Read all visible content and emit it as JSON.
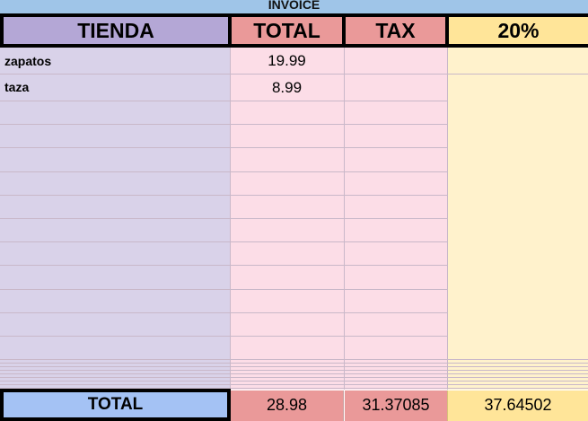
{
  "title": "INVOICE",
  "headers": [
    "TIENDA",
    "TOTAL",
    "TAX",
    "20%"
  ],
  "rows": [
    {
      "tienda": "zapatos",
      "total": "19.99",
      "tax": "",
      "pct": ""
    },
    {
      "tienda": "taza",
      "total": "8.99",
      "tax": "",
      "pct": ""
    }
  ],
  "totals": {
    "label": "TOTAL",
    "total": "28.98",
    "tax": "31.37085",
    "pct": "37.64502"
  },
  "colors": {
    "title_bg": "#9fc5e8",
    "tienda_header": "#b4a7d6",
    "total_header": "#ea9999",
    "pct_header": "#ffe599",
    "tienda_col": "#d9d2e9",
    "pink_col": "#fcdde7",
    "yellow_col": "#fff2cc",
    "total_label_bg": "#a4c2f4"
  }
}
